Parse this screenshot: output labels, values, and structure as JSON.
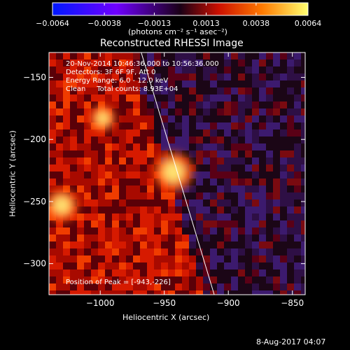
{
  "colorbar": {
    "ticks": [
      "−0.0064",
      "−0.0038",
      "−0.0013",
      "0.0013",
      "0.0038",
      "0.0064"
    ],
    "tick_values": [
      -0.0064,
      -0.0038,
      -0.0013,
      0.0013,
      0.0038,
      0.0064
    ],
    "units": "(photons cm⁻² s⁻¹ asec⁻²)",
    "colors": [
      "#0018ff",
      "#6f00ff",
      "#1a0016",
      "#cc1000",
      "#ff7a00",
      "#ffff70"
    ]
  },
  "plot": {
    "title": "Reconstructed RHESSI Image",
    "annotations": [
      "20-Nov-2014 10:46:36.000 to 10:56:36.000",
      "Detectors: 3F 6F 9F, Att 0",
      "Energy Range: 6.0 - 12.0 keV",
      "Clean     Total counts: 8.93E+04"
    ],
    "peak_label": "Position of Peak = [-943,-226]",
    "xlabel": "Heliocentric X (arcsec)",
    "ylabel": "Heliocentric Y (arcsec)",
    "footer_date": "8-Aug-2017 04:07"
  },
  "chart_data": {
    "type": "heatmap",
    "title": "Reconstructed RHESSI Image",
    "xlabel": "Heliocentric X (arcsec)",
    "ylabel": "Heliocentric Y (arcsec)",
    "xlim": [
      -1040,
      -840
    ],
    "ylim": [
      -325,
      -130
    ],
    "x_ticks": [
      -1000,
      -950,
      -900,
      -850
    ],
    "x_tick_labels": [
      "−1000",
      "−950",
      "−900",
      "−850"
    ],
    "y_ticks": [
      -150,
      -200,
      -250,
      -300
    ],
    "y_tick_labels": [
      "−150",
      "−200",
      "−250",
      "−300"
    ],
    "color_range": [
      -0.0064,
      0.0064
    ],
    "sources": [
      {
        "x": -943,
        "y": -226,
        "intensity": 0.0064
      },
      {
        "x": -1030,
        "y": -253,
        "intensity": 0.005
      },
      {
        "x": -998,
        "y": -183,
        "intensity": 0.0035
      }
    ],
    "limb_line": [
      [
        -968,
        -130
      ],
      [
        -911,
        -325
      ]
    ],
    "peak": [
      -943,
      -226
    ]
  }
}
